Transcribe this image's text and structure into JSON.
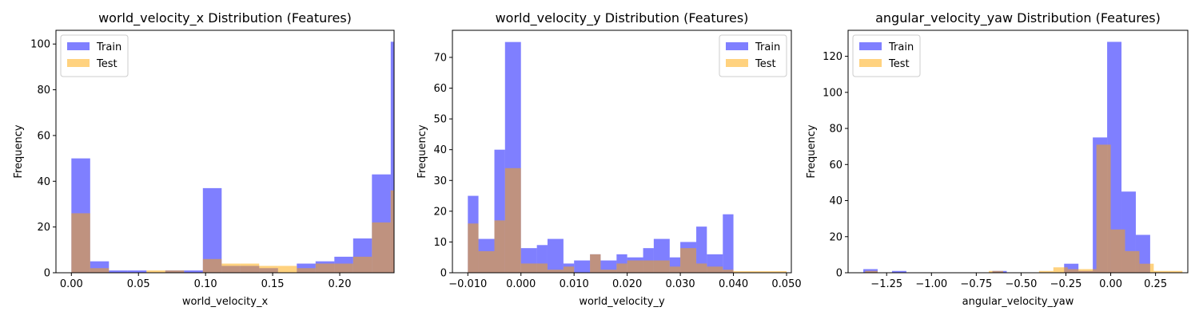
{
  "colors": {
    "train": "#0000ff",
    "test": "#ffa500",
    "overlap": "#bf8c7f"
  },
  "chart_data": [
    {
      "type": "bar",
      "title": "world_velocity_x Distribution (Features)",
      "xlabel": "world_velocity_x",
      "ylabel": "Frequency",
      "xlim": [
        -0.0115,
        0.2405
      ],
      "ylim": [
        0,
        106
      ],
      "xticks": [
        0.0,
        0.05,
        0.1,
        0.15,
        0.2
      ],
      "xtick_labels": [
        "0.00",
        "0.05",
        "0.10",
        "0.15",
        "0.20"
      ],
      "yticks": [
        0,
        20,
        40,
        60,
        80,
        100
      ],
      "ytick_labels": [
        "0",
        "20",
        "40",
        "60",
        "80",
        "100"
      ],
      "legend": {
        "position": "top-left",
        "entries": [
          "Train",
          "Test"
        ]
      },
      "series": [
        {
          "name": "Train",
          "bins": [
            [
              0.0,
              0.014,
              50
            ],
            [
              0.014,
              0.028,
              5
            ],
            [
              0.028,
              0.042,
              1
            ],
            [
              0.042,
              0.056,
              1
            ],
            [
              0.056,
              0.07,
              0
            ],
            [
              0.07,
              0.084,
              1
            ],
            [
              0.084,
              0.098,
              1
            ],
            [
              0.098,
              0.112,
              37
            ],
            [
              0.112,
              0.126,
              3
            ],
            [
              0.126,
              0.14,
              3
            ],
            [
              0.14,
              0.154,
              2
            ],
            [
              0.154,
              0.168,
              0
            ],
            [
              0.168,
              0.182,
              4
            ],
            [
              0.182,
              0.196,
              5
            ],
            [
              0.196,
              0.21,
              7
            ],
            [
              0.21,
              0.224,
              15
            ],
            [
              0.224,
              0.238,
              43
            ],
            [
              0.238,
              0.252,
              101
            ]
          ]
        },
        {
          "name": "Test",
          "bins": [
            [
              0.0,
              0.014,
              26
            ],
            [
              0.014,
              0.028,
              2
            ],
            [
              0.028,
              0.042,
              0
            ],
            [
              0.042,
              0.056,
              0
            ],
            [
              0.056,
              0.07,
              1
            ],
            [
              0.07,
              0.084,
              1
            ],
            [
              0.084,
              0.098,
              0
            ],
            [
              0.098,
              0.112,
              6
            ],
            [
              0.112,
              0.126,
              4
            ],
            [
              0.126,
              0.14,
              4
            ],
            [
              0.14,
              0.154,
              3
            ],
            [
              0.154,
              0.168,
              3
            ],
            [
              0.168,
              0.182,
              2
            ],
            [
              0.182,
              0.196,
              4
            ],
            [
              0.196,
              0.21,
              4
            ],
            [
              0.21,
              0.224,
              7
            ],
            [
              0.224,
              0.238,
              22
            ],
            [
              0.238,
              0.252,
              36
            ]
          ]
        }
      ]
    },
    {
      "type": "bar",
      "title": "world_velocity_y Distribution (Features)",
      "xlabel": "world_velocity_y",
      "ylabel": "Frequency",
      "xlim": [
        -0.0129,
        0.0509
      ],
      "ylim": [
        0,
        78.8
      ],
      "xticks": [
        -0.01,
        0.0,
        0.01,
        0.02,
        0.03,
        0.04,
        0.05
      ],
      "xtick_labels": [
        "−0.010",
        "0.000",
        "0.010",
        "0.020",
        "0.030",
        "0.040",
        "0.050"
      ],
      "yticks": [
        0,
        10,
        20,
        30,
        40,
        50,
        60,
        70
      ],
      "ytick_labels": [
        "0",
        "10",
        "20",
        "30",
        "40",
        "50",
        "60",
        "70"
      ],
      "legend": {
        "position": "top-right",
        "entries": [
          "Train",
          "Test"
        ]
      },
      "series": [
        {
          "name": "Train",
          "bins": [
            [
              -0.01,
              -0.008,
              25
            ],
            [
              -0.008,
              -0.005,
              11
            ],
            [
              -0.005,
              -0.003,
              40
            ],
            [
              -0.003,
              0.0,
              75
            ],
            [
              0.0,
              0.003,
              8
            ],
            [
              0.003,
              0.005,
              9
            ],
            [
              0.005,
              0.008,
              11
            ],
            [
              0.008,
              0.01,
              3
            ],
            [
              0.01,
              0.013,
              4
            ],
            [
              0.013,
              0.015,
              6
            ],
            [
              0.015,
              0.018,
              4
            ],
            [
              0.018,
              0.02,
              6
            ],
            [
              0.02,
              0.023,
              5
            ],
            [
              0.023,
              0.025,
              8
            ],
            [
              0.025,
              0.028,
              11
            ],
            [
              0.028,
              0.03,
              5
            ],
            [
              0.03,
              0.033,
              10
            ],
            [
              0.033,
              0.035,
              15
            ],
            [
              0.035,
              0.038,
              6
            ],
            [
              0.038,
              0.04,
              19
            ]
          ]
        },
        {
          "name": "Test",
          "bins": [
            [
              -0.01,
              -0.008,
              16
            ],
            [
              -0.008,
              -0.005,
              7
            ],
            [
              -0.005,
              -0.003,
              17
            ],
            [
              -0.003,
              0.0,
              34
            ],
            [
              0.0,
              0.003,
              3
            ],
            [
              0.003,
              0.005,
              3
            ],
            [
              0.005,
              0.008,
              1
            ],
            [
              0.008,
              0.01,
              2
            ],
            [
              0.01,
              0.013,
              0
            ],
            [
              0.013,
              0.015,
              6
            ],
            [
              0.015,
              0.018,
              1
            ],
            [
              0.018,
              0.02,
              3
            ],
            [
              0.02,
              0.023,
              4
            ],
            [
              0.023,
              0.025,
              4
            ],
            [
              0.025,
              0.028,
              4
            ],
            [
              0.028,
              0.03,
              2
            ],
            [
              0.03,
              0.033,
              8
            ],
            [
              0.033,
              0.035,
              3
            ],
            [
              0.035,
              0.038,
              2
            ],
            [
              0.038,
              0.04,
              1
            ],
            [
              0.04,
              0.05,
              0.5
            ]
          ]
        }
      ]
    },
    {
      "type": "bar",
      "title": "angular_velocity_yaw Distribution (Features)",
      "xlabel": "angular_velocity_yaw",
      "ylabel": "Frequency",
      "xlim": [
        -1.465,
        0.43
      ],
      "ylim": [
        0,
        134.4
      ],
      "xticks": [
        -1.25,
        -1.0,
        -0.75,
        -0.5,
        -0.25,
        0.0,
        0.25
      ],
      "xtick_labels": [
        "−1.25",
        "−1.00",
        "−0.75",
        "−0.50",
        "−0.25",
        "0.00",
        "0.25"
      ],
      "yticks": [
        0,
        20,
        40,
        60,
        80,
        100,
        120
      ],
      "ytick_labels": [
        "0",
        "20",
        "40",
        "60",
        "80",
        "100",
        "120"
      ],
      "legend": {
        "position": "top-left",
        "entries": [
          "Train",
          "Test"
        ]
      },
      "series": [
        {
          "name": "Train",
          "bins": [
            [
              -1.38,
              -1.3,
              2
            ],
            [
              -1.3,
              -1.22,
              0
            ],
            [
              -1.22,
              -1.14,
              1
            ],
            [
              -1.14,
              -1.06,
              0
            ],
            [
              -1.06,
              -0.98,
              0
            ],
            [
              -0.98,
              -0.9,
              0
            ],
            [
              -0.9,
              -0.82,
              0
            ],
            [
              -0.82,
              -0.74,
              0
            ],
            [
              -0.74,
              -0.66,
              0
            ],
            [
              -0.66,
              -0.58,
              1
            ],
            [
              -0.58,
              -0.5,
              0
            ],
            [
              -0.5,
              -0.42,
              0
            ],
            [
              -0.42,
              -0.34,
              0
            ],
            [
              -0.34,
              -0.26,
              0
            ],
            [
              -0.26,
              -0.18,
              5
            ],
            [
              -0.18,
              -0.1,
              1
            ],
            [
              -0.1,
              -0.02,
              75
            ],
            [
              -0.02,
              0.06,
              128
            ],
            [
              0.06,
              0.14,
              45
            ],
            [
              0.14,
              0.22,
              21
            ]
          ]
        },
        {
          "name": "Test",
          "bins": [
            [
              -1.37,
              -1.3,
              1
            ],
            [
              -0.68,
              -0.6,
              1
            ],
            [
              -0.4,
              -0.32,
              1
            ],
            [
              -0.32,
              -0.24,
              3
            ],
            [
              -0.24,
              -0.16,
              2
            ],
            [
              -0.16,
              -0.08,
              2
            ],
            [
              -0.08,
              0.0,
              71
            ],
            [
              0.0,
              0.08,
              24
            ],
            [
              0.08,
              0.16,
              12
            ],
            [
              0.16,
              0.24,
              5
            ],
            [
              0.24,
              0.32,
              1
            ],
            [
              0.32,
              0.4,
              1
            ]
          ]
        }
      ]
    }
  ]
}
